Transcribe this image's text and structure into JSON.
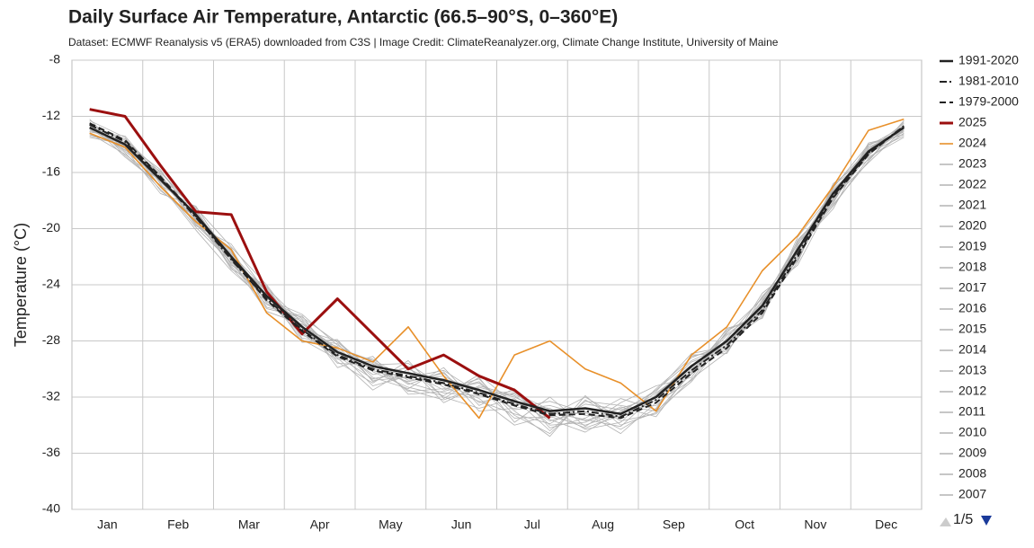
{
  "chart_data": {
    "type": "line",
    "title": "Daily Surface Air Temperature, Antarctic (66.5–90°S, 0–360°E)",
    "subtitle": "Dataset: ECMWF Reanalysis v5 (ERA5) downloaded from C3S | Image Credit: ClimateReanalyzer.org, Climate Change Institute, University of Maine",
    "y_label": "Temperature (°C)",
    "legend_page": "1/5",
    "grid": true,
    "ylim": [
      -40,
      -8
    ],
    "yticks": [
      -40,
      -36,
      -32,
      -28,
      -24,
      -20,
      -16,
      -12,
      -8
    ],
    "categories": [
      "Jan",
      null,
      "Feb",
      null,
      "Mar",
      null,
      "Apr",
      null,
      "May",
      null,
      "Jun",
      null,
      "Jul",
      null,
      "Aug",
      null,
      "Sep",
      null,
      "Oct",
      null,
      "Nov",
      null,
      "Dec",
      null
    ],
    "series": [
      {
        "name": "1991-2020",
        "color": "#222222",
        "dash": "solid",
        "width": 2.5,
        "values": [
          -12.8,
          -14,
          -16.5,
          -19,
          -22,
          -24.8,
          -27,
          -28.8,
          -29.8,
          -30.3,
          -30.8,
          -31.5,
          -32.3,
          -33,
          -32.8,
          -33.2,
          -32,
          -29.8,
          -28,
          -25.5,
          -21.5,
          -17.5,
          -14.5,
          -12.8
        ]
      },
      {
        "name": "1981-2010",
        "color": "#222222",
        "dash": "dashdot",
        "width": 2,
        "values": [
          -12.6,
          -13.8,
          -16.4,
          -19.2,
          -22.2,
          -25,
          -27.2,
          -29,
          -30,
          -30.5,
          -31,
          -31.7,
          -32.5,
          -33.2,
          -33,
          -33.4,
          -32.2,
          -30.1,
          -28.3,
          -25.8,
          -21.8,
          -17.7,
          -14.6,
          -12.7
        ]
      },
      {
        "name": "1979-2000",
        "color": "#222222",
        "dash": "dashed",
        "width": 2,
        "values": [
          -12.5,
          -13.7,
          -16.3,
          -19.1,
          -22.1,
          -25.1,
          -27.3,
          -29.1,
          -30.1,
          -30.6,
          -31.1,
          -31.8,
          -32.6,
          -33.3,
          -33.2,
          -33.5,
          -32.4,
          -30.3,
          -28.5,
          -26,
          -22,
          -17.8,
          -14.7,
          -12.7
        ]
      },
      {
        "name": "2025",
        "color": "#9b0f0f",
        "dash": "solid",
        "width": 3,
        "values": [
          -11.5,
          -12,
          -15.5,
          -18.8,
          -19,
          -24.5,
          -27.5,
          -25,
          -27.5,
          -30,
          -29,
          -30.5,
          -31.5,
          -33.5,
          null,
          null,
          null,
          null,
          null,
          null,
          null,
          null,
          null,
          null
        ]
      },
      {
        "name": "2024",
        "color": "#e8902a",
        "dash": "solid",
        "width": 1.6,
        "values": [
          -13.2,
          -14.2,
          -17,
          -19.5,
          -21.5,
          -26,
          -28,
          -28.5,
          -29.5,
          -27,
          -30.5,
          -33.5,
          -29,
          -28,
          -30,
          -31,
          -33,
          -29,
          -27,
          -23,
          -20.5,
          -17,
          -13,
          -12.2
        ]
      },
      {
        "name": "2023",
        "color": "#b3b3b3",
        "dash": "solid",
        "width": 0.8,
        "values": [
          -12.5,
          -14.6,
          -17.2,
          -19.5,
          -21.4,
          -25.6,
          -26.2,
          -29.5,
          -31.0,
          -29.4,
          -32.1,
          -30.6,
          -33.8,
          -32.0,
          -34.1,
          -32.4,
          -31.2,
          -30.6,
          -27.1,
          -26.4,
          -20.8,
          -18.2,
          -13.9,
          -13.3
        ]
      },
      {
        "name": "2022",
        "color": "#b3b3b3",
        "dash": "solid",
        "width": 0.8,
        "values": [
          -13.1,
          -13.6,
          -16.0,
          -18.7,
          -22.6,
          -24.1,
          -27.8,
          -28.2,
          -30.6,
          -31.4,
          -29.9,
          -32.6,
          -31.4,
          -34.2,
          -33.5,
          -32.1,
          -32.9,
          -29.0,
          -28.9,
          -24.8,
          -22.3,
          -16.9,
          -15.1,
          -12.4
        ]
      },
      {
        "name": "2021",
        "color": "#b3b3b3",
        "dash": "solid",
        "width": 0.8,
        "values": [
          -12.2,
          -14.8,
          -16.9,
          -20.1,
          -23.0,
          -25.2,
          -26.5,
          -29.9,
          -29.1,
          -31.8,
          -31.6,
          -30.9,
          -33.0,
          -34.8,
          -31.9,
          -34.0,
          -33.1,
          -30.3,
          -27.6,
          -26.0,
          -21.0,
          -18.0,
          -14.2,
          -13.0
        ]
      },
      {
        "name": "2020",
        "color": "#b3b3b3",
        "dash": "solid",
        "width": 0.8,
        "values": [
          -13.4,
          -13.9,
          -15.8,
          -19.4,
          -21.8,
          -24.4,
          -28.1,
          -27.9,
          -30.9,
          -29.8,
          -32.4,
          -31.2,
          -31.9,
          -33.6,
          -34.5,
          -33.0,
          -31.6,
          -28.9,
          -28.4,
          -25.1,
          -22.0,
          -17.2,
          -14.8,
          -12.6
        ]
      },
      {
        "name": "2019",
        "color": "#b3b3b3",
        "dash": "solid",
        "width": 0.8,
        "values": [
          -12.9,
          -14.3,
          -17.5,
          -18.4,
          -22.3,
          -25.9,
          -26.8,
          -28.5,
          -29.4,
          -31.1,
          -30.2,
          -33.0,
          -32.8,
          -32.3,
          -33.1,
          -34.6,
          -32.4,
          -30.8,
          -27.3,
          -25.9,
          -21.3,
          -18.6,
          -14.0,
          -13.1
        ]
      },
      {
        "name": "2018",
        "color": "#b3b3b3",
        "dash": "solid",
        "width": 0.8,
        "values": [
          -12.6,
          -13.7,
          -16.2,
          -19.8,
          -21.1,
          -24.6,
          -27.5,
          -29.2,
          -31.5,
          -30.0,
          -31.1,
          -32.1,
          -34.0,
          -33.3,
          -32.0,
          -33.5,
          -31.9,
          -29.5,
          -28.6,
          -24.6,
          -22.6,
          -17.8,
          -15.3,
          -12.9
        ]
      },
      {
        "name": "2017",
        "color": "#b3b3b3",
        "dash": "solid",
        "width": 0.8,
        "values": [
          -13.3,
          -14.1,
          -16.7,
          -18.9,
          -22.9,
          -24.2,
          -26.7,
          -28.9,
          -29.3,
          -30.8,
          -30.5,
          -31.8,
          -31.6,
          -34.0,
          -33.8,
          -32.7,
          -33.4,
          -30.1,
          -27.9,
          -26.2,
          -20.6,
          -17.4,
          -14.6,
          -13.4
        ]
      },
      {
        "name": "2016",
        "color": "#b3b3b3",
        "dash": "solid",
        "width": 0.8,
        "values": [
          -12.4,
          -14.5,
          -16.4,
          -19.1,
          -21.6,
          -25.3,
          -27.2,
          -28.0,
          -30.2,
          -31.3,
          -31.9,
          -30.4,
          -32.5,
          -32.8,
          -34.3,
          -33.8,
          -31.4,
          -29.2,
          -28.2,
          -25.4,
          -21.8,
          -17.0,
          -14.4,
          -12.5
        ]
      },
      {
        "name": "2015",
        "color": "#b3b3b3",
        "dash": "solid",
        "width": 0.8,
        "values": [
          -13.0,
          -13.8,
          -17.0,
          -19.6,
          -22.1,
          -24.5,
          -26.9,
          -29.6,
          -29.7,
          -29.6,
          -31.3,
          -32.3,
          -33.2,
          -33.9,
          -32.5,
          -32.9,
          -32.6,
          -30.4,
          -27.4,
          -25.0,
          -21.4,
          -18.4,
          -15.0,
          -13.2
        ]
      },
      {
        "name": "2014",
        "color": "#b3b3b3",
        "dash": "solid",
        "width": 0.8,
        "values": [
          -12.7,
          -14.2,
          -16.3,
          -18.6,
          -22.5,
          -25.1,
          -27.6,
          -28.4,
          -30.8,
          -30.6,
          -30.1,
          -31.7,
          -31.8,
          -33.1,
          -33.6,
          -34.1,
          -31.8,
          -29.7,
          -28.7,
          -25.7,
          -22.2,
          -17.6,
          -14.1,
          -12.7
        ]
      },
      {
        "name": "2013",
        "color": "#b3b3b3",
        "dash": "solid",
        "width": 0.8,
        "values": [
          -13.2,
          -14.7,
          -16.6,
          -19.3,
          -21.7,
          -24.9,
          -26.4,
          -29.0,
          -29.6,
          -31.6,
          -31.4,
          -31.0,
          -32.9,
          -32.6,
          -33.3,
          -33.4,
          -32.2,
          -30.0,
          -28.1,
          -26.3,
          -21.2,
          -17.3,
          -14.7,
          -13.0
        ]
      },
      {
        "name": "2012",
        "color": "#b3b3b3",
        "dash": "solid",
        "width": 0.8,
        "values": [
          -12.3,
          -13.5,
          -16.8,
          -19.9,
          -22.4,
          -24.3,
          -27.3,
          -28.6,
          -30.4,
          -29.9,
          -32.0,
          -32.8,
          -32.1,
          -34.4,
          -32.3,
          -32.6,
          -33.0,
          -30.9,
          -27.8,
          -24.9,
          -21.6,
          -18.1,
          -14.3,
          -12.8
        ]
      },
      {
        "name": "2011",
        "color": "#b3b3b3",
        "dash": "solid",
        "width": 0.8,
        "values": [
          -12.9,
          -14.4,
          -15.9,
          -18.8,
          -22.8,
          -25.4,
          -26.6,
          -28.7,
          -31.2,
          -30.5,
          -30.7,
          -31.4,
          -33.5,
          -33.4,
          -34.0,
          -33.1,
          -31.5,
          -29.4,
          -28.3,
          -25.6,
          -22.4,
          -16.8,
          -14.9,
          -13.5
        ]
      },
      {
        "name": "2010",
        "color": "#b3b3b3",
        "dash": "solid",
        "width": 0.8,
        "values": [
          -13.5,
          -14.0,
          -17.3,
          -19.2,
          -21.9,
          -24.7,
          -27.9,
          -29.3,
          -29.5,
          -31.0,
          -31.7,
          -31.9,
          -32.2,
          -33.7,
          -33.0,
          -34.3,
          -32.8,
          -29.1,
          -28.5,
          -25.2,
          -21.1,
          -18.3,
          -15.2,
          -12.3
        ]
      },
      {
        "name": "2009",
        "color": "#b3b3b3",
        "dash": "solid",
        "width": 0.8,
        "values": [
          -12.8,
          -13.9,
          -16.1,
          -19.7,
          -22.2,
          -25.7,
          -26.3,
          -28.1,
          -30.1,
          -30.9,
          -30.3,
          -32.4,
          -31.7,
          -32.9,
          -33.7,
          -32.8,
          -32.0,
          -30.2,
          -27.2,
          -26.1,
          -21.7,
          -17.7,
          -14.5,
          -13.1
        ]
      },
      {
        "name": "2008",
        "color": "#b3b3b3",
        "dash": "solid",
        "width": 0.8,
        "values": [
          -12.5,
          -14.9,
          -16.9,
          -18.5,
          -21.3,
          -24.0,
          -27.4,
          -29.1,
          -30.7,
          -30.2,
          -31.5,
          -30.7,
          -33.3,
          -34.6,
          -32.2,
          -33.7,
          -33.2,
          -30.7,
          -28.8,
          -25.3,
          -20.9,
          -17.9,
          -14.8,
          -12.6
        ]
      },
      {
        "name": "2007",
        "color": "#b3b3b3",
        "dash": "solid",
        "width": 0.8,
        "values": [
          -13.1,
          -13.4,
          -16.4,
          -19.4,
          -22.7,
          -25.0,
          -26.1,
          -28.3,
          -29.9,
          -31.5,
          -32.2,
          -31.3,
          -32.0,
          -33.2,
          -34.2,
          -33.3,
          -31.7,
          -29.9,
          -27.5,
          -25.8,
          -22.1,
          -17.1,
          -14.0,
          -13.3
        ]
      }
    ]
  }
}
